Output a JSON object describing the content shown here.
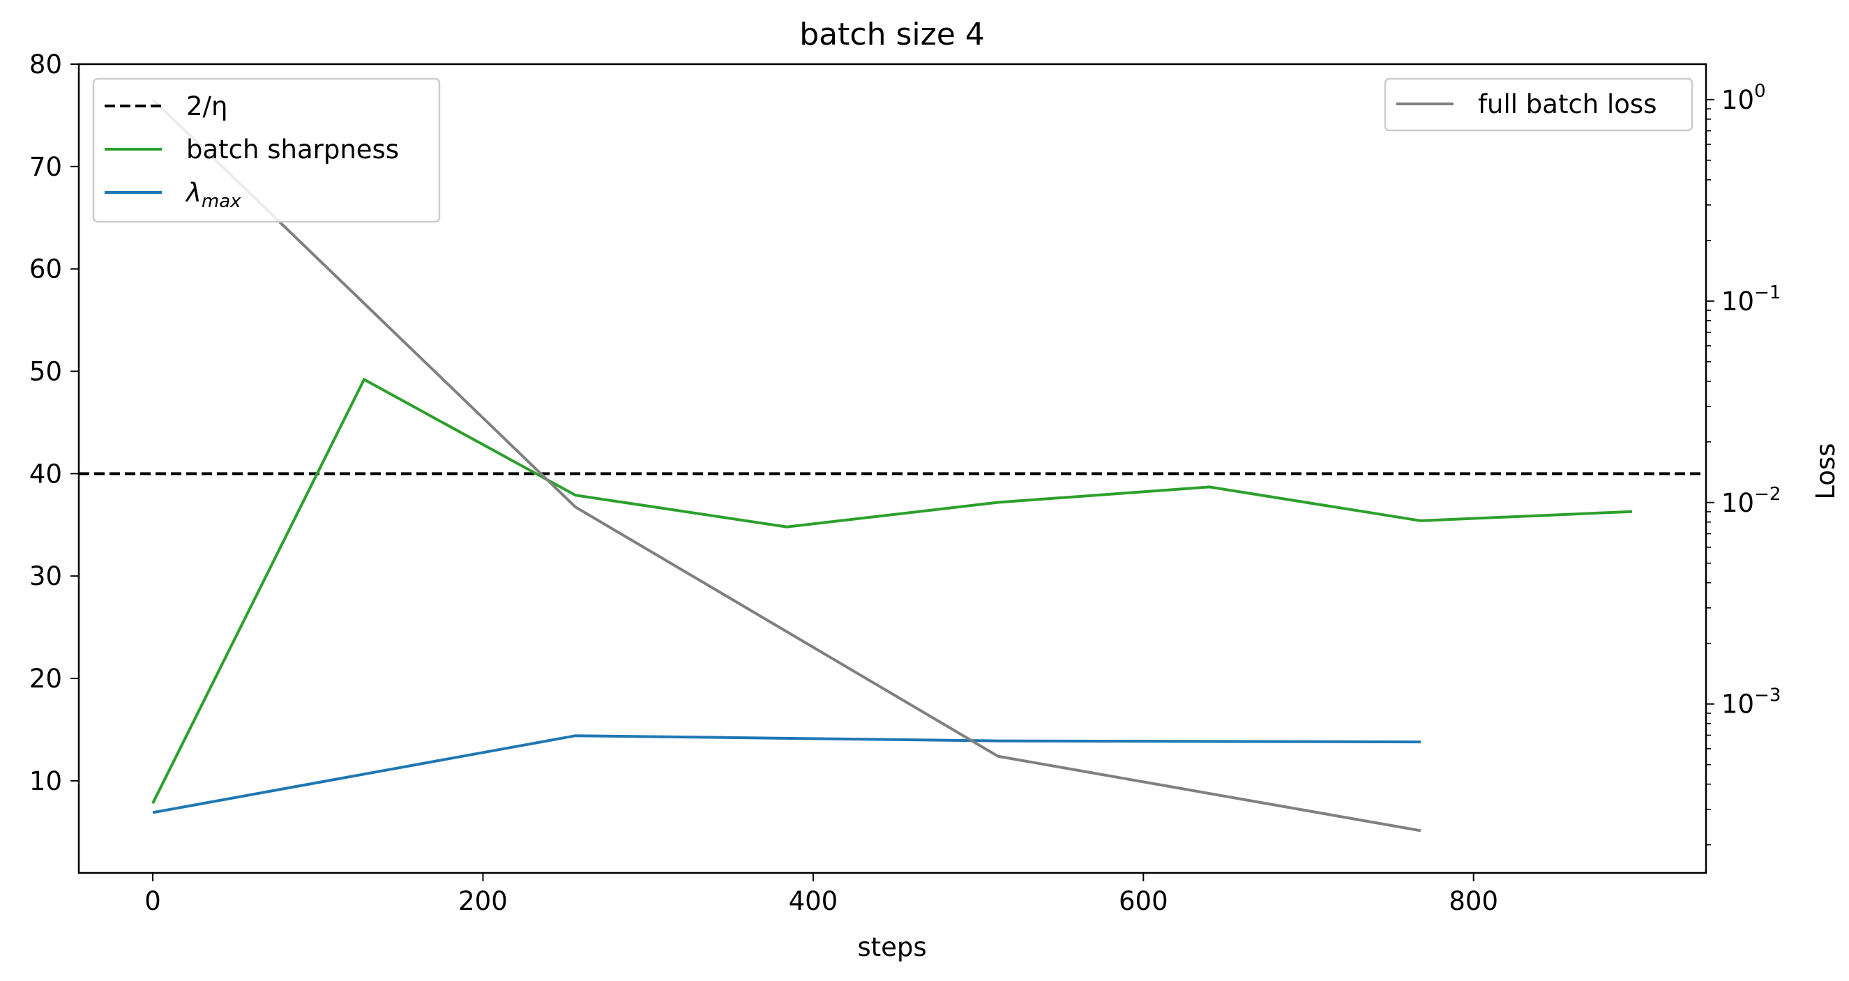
{
  "chart_data": {
    "type": "line",
    "title": "batch size 4",
    "xlabel": "steps",
    "ylabel": "",
    "y2label": "Loss",
    "xlim": [
      -44.8,
      940.8
    ],
    "ylim": [
      1,
      80
    ],
    "y2lim": [
      0.000145,
      1.5
    ],
    "y2scale": "log",
    "xticks": [
      0,
      200,
      400,
      600,
      800
    ],
    "yticks": [
      10,
      20,
      30,
      40,
      50,
      60,
      70,
      80
    ],
    "y2ticks": [
      {
        "value": 1,
        "base": "10",
        "exp": "0"
      },
      {
        "value": 0.1,
        "base": "10",
        "exp": "−1"
      },
      {
        "value": 0.01,
        "base": "10",
        "exp": "−2"
      },
      {
        "value": 0.001,
        "base": "10",
        "exp": "−3"
      }
    ],
    "hline": {
      "value": 40,
      "label": "2/η",
      "color": "#000000",
      "style": "dashed"
    },
    "series": [
      {
        "name": "batch sharpness",
        "axis": "left",
        "color": "#2ca02c",
        "x": [
          0,
          128,
          256,
          384,
          512,
          640,
          768,
          896
        ],
        "y": [
          7.8,
          49.2,
          37.9,
          34.8,
          37.2,
          38.7,
          35.4,
          36.3
        ]
      },
      {
        "name": "λmax",
        "axis": "left",
        "color": "#1f77b4",
        "x": [
          0,
          256,
          512,
          768
        ],
        "y": [
          6.9,
          14.4,
          13.9,
          13.8
        ]
      },
      {
        "name": "full batch loss",
        "axis": "right",
        "color": "#808080",
        "x": [
          0,
          256,
          512,
          768
        ],
        "y": [
          1.0,
          0.0095,
          0.00055,
          0.000235
        ]
      }
    ],
    "legend_left": {
      "placement": "top-left",
      "entries": [
        {
          "label": "2/η",
          "color": "#000000",
          "style": "dashed"
        },
        {
          "label": "batch sharpness",
          "color": "#2ca02c",
          "style": "solid"
        },
        {
          "label": "λ",
          "sub": "max",
          "color": "#1f77b4",
          "style": "solid"
        }
      ]
    },
    "legend_right": {
      "placement": "top-right",
      "entries": [
        {
          "label": "full batch loss",
          "color": "#808080",
          "style": "solid"
        }
      ]
    },
    "grid": false
  }
}
